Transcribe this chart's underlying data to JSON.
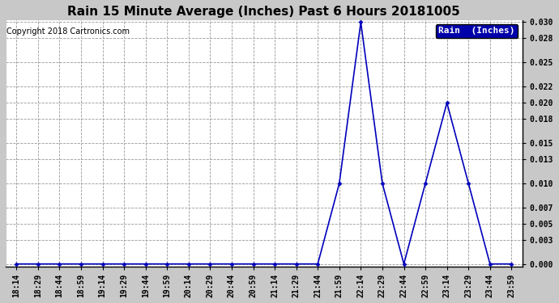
{
  "title": "Rain 15 Minute Average (Inches) Past 6 Hours 20181005",
  "copyright_text": "Copyright 2018 Cartronics.com",
  "legend_label": "Rain  (Inches)",
  "x_labels": [
    "18:14",
    "18:29",
    "18:44",
    "18:59",
    "19:14",
    "19:29",
    "19:44",
    "19:59",
    "20:14",
    "20:29",
    "20:44",
    "20:59",
    "21:14",
    "21:29",
    "21:44",
    "21:59",
    "22:14",
    "22:29",
    "22:44",
    "22:59",
    "23:14",
    "23:29",
    "23:44",
    "23:59"
  ],
  "y_values": [
    0.0,
    0.0,
    0.0,
    0.0,
    0.0,
    0.0,
    0.0,
    0.0,
    0.0,
    0.0,
    0.0,
    0.0,
    0.0,
    0.0,
    0.0,
    0.01,
    0.03,
    0.01,
    0.0,
    0.01,
    0.02,
    0.01,
    0.0,
    0.0
  ],
  "ylim_min": 0.0,
  "ylim_max": 0.03,
  "yticks": [
    0.0,
    0.003,
    0.005,
    0.007,
    0.01,
    0.013,
    0.015,
    0.018,
    0.02,
    0.022,
    0.025,
    0.028,
    0.03
  ],
  "line_color": "#0000bb",
  "marker_color": "#0000bb",
  "bg_color": "#c8c8c8",
  "plot_bg_color": "#ffffff",
  "grid_color": "#999999",
  "title_fontsize": 11,
  "axis_fontsize": 7,
  "copyright_fontsize": 7,
  "legend_bg_color": "#0000aa",
  "legend_text_color": "#ffffff"
}
